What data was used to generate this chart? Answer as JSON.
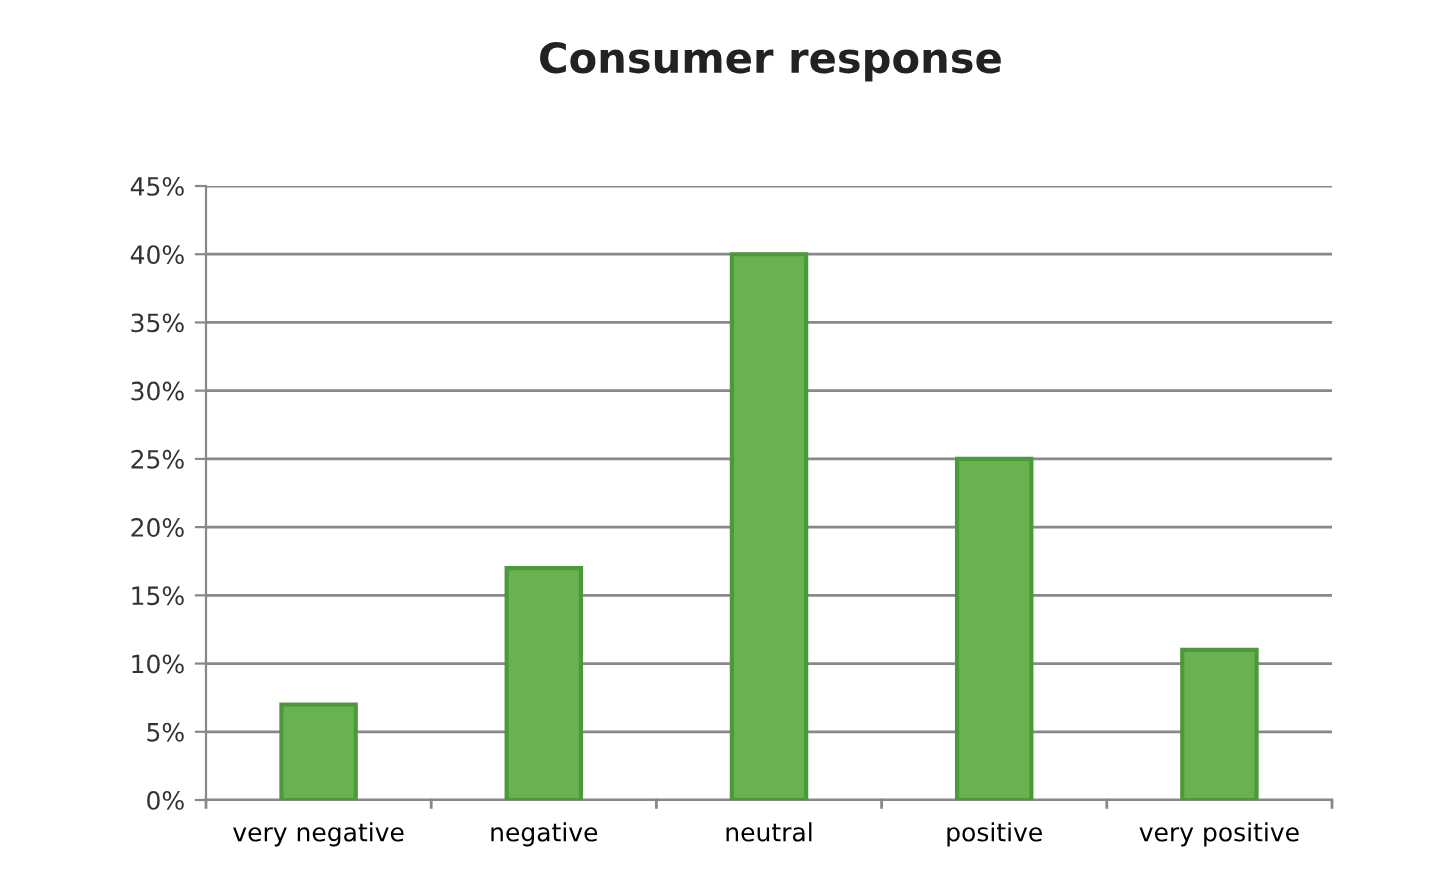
{
  "chart_data": {
    "type": "bar",
    "title": "Consumer response",
    "categories": [
      "very negative",
      "negative",
      "neutral",
      "positive",
      "very positive"
    ],
    "values": [
      7,
      17,
      40,
      25,
      11
    ],
    "color": "#6ab150",
    "ylim": [
      0,
      45
    ],
    "yticks": [
      {
        "value": 0,
        "label": "0%"
      },
      {
        "value": 5,
        "label": "5%"
      },
      {
        "value": 10,
        "label": "10%"
      },
      {
        "value": 15,
        "label": "15%"
      },
      {
        "value": 20,
        "label": "20%"
      },
      {
        "value": 25,
        "label": "25%"
      },
      {
        "value": 30,
        "label": "30%"
      },
      {
        "value": 35,
        "label": "35%"
      },
      {
        "value": 40,
        "label": "40%"
      },
      {
        "value": 45,
        "label": "45%"
      }
    ],
    "grid": "y"
  }
}
